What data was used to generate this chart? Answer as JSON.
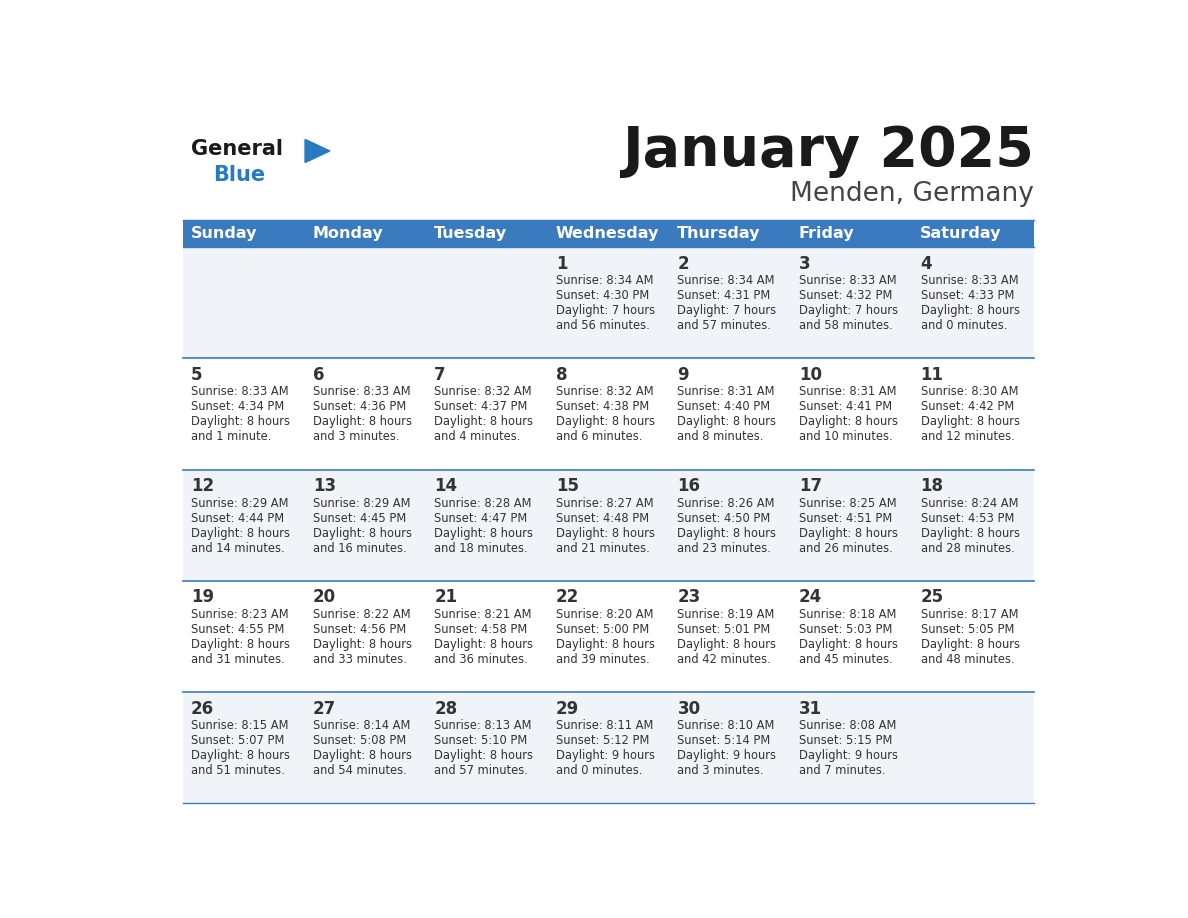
{
  "title": "January 2025",
  "subtitle": "Menden, Germany",
  "days_of_week": [
    "Sunday",
    "Monday",
    "Tuesday",
    "Wednesday",
    "Thursday",
    "Friday",
    "Saturday"
  ],
  "header_bg": "#3a7abf",
  "header_text": "#ffffff",
  "row_bg_light": "#f0f4f8",
  "row_bg_white": "#ffffff",
  "divider_color": "#3a7abf",
  "text_color": "#333333",
  "title_color": "#1a1a1a",
  "subtitle_color": "#444444",
  "logo_general_color": "#1a1a1a",
  "logo_blue_color": "#2a7abf",
  "calendar": [
    [
      null,
      null,
      null,
      {
        "day": "1",
        "sunrise": "8:34 AM",
        "sunset": "4:30 PM",
        "daylight_h": "7 hours",
        "daylight_m": "and 56 minutes."
      },
      {
        "day": "2",
        "sunrise": "8:34 AM",
        "sunset": "4:31 PM",
        "daylight_h": "7 hours",
        "daylight_m": "and 57 minutes."
      },
      {
        "day": "3",
        "sunrise": "8:33 AM",
        "sunset": "4:32 PM",
        "daylight_h": "7 hours",
        "daylight_m": "and 58 minutes."
      },
      {
        "day": "4",
        "sunrise": "8:33 AM",
        "sunset": "4:33 PM",
        "daylight_h": "8 hours",
        "daylight_m": "and 0 minutes."
      }
    ],
    [
      {
        "day": "5",
        "sunrise": "8:33 AM",
        "sunset": "4:34 PM",
        "daylight_h": "8 hours",
        "daylight_m": "and 1 minute."
      },
      {
        "day": "6",
        "sunrise": "8:33 AM",
        "sunset": "4:36 PM",
        "daylight_h": "8 hours",
        "daylight_m": "and 3 minutes."
      },
      {
        "day": "7",
        "sunrise": "8:32 AM",
        "sunset": "4:37 PM",
        "daylight_h": "8 hours",
        "daylight_m": "and 4 minutes."
      },
      {
        "day": "8",
        "sunrise": "8:32 AM",
        "sunset": "4:38 PM",
        "daylight_h": "8 hours",
        "daylight_m": "and 6 minutes."
      },
      {
        "day": "9",
        "sunrise": "8:31 AM",
        "sunset": "4:40 PM",
        "daylight_h": "8 hours",
        "daylight_m": "and 8 minutes."
      },
      {
        "day": "10",
        "sunrise": "8:31 AM",
        "sunset": "4:41 PM",
        "daylight_h": "8 hours",
        "daylight_m": "and 10 minutes."
      },
      {
        "day": "11",
        "sunrise": "8:30 AM",
        "sunset": "4:42 PM",
        "daylight_h": "8 hours",
        "daylight_m": "and 12 minutes."
      }
    ],
    [
      {
        "day": "12",
        "sunrise": "8:29 AM",
        "sunset": "4:44 PM",
        "daylight_h": "8 hours",
        "daylight_m": "and 14 minutes."
      },
      {
        "day": "13",
        "sunrise": "8:29 AM",
        "sunset": "4:45 PM",
        "daylight_h": "8 hours",
        "daylight_m": "and 16 minutes."
      },
      {
        "day": "14",
        "sunrise": "8:28 AM",
        "sunset": "4:47 PM",
        "daylight_h": "8 hours",
        "daylight_m": "and 18 minutes."
      },
      {
        "day": "15",
        "sunrise": "8:27 AM",
        "sunset": "4:48 PM",
        "daylight_h": "8 hours",
        "daylight_m": "and 21 minutes."
      },
      {
        "day": "16",
        "sunrise": "8:26 AM",
        "sunset": "4:50 PM",
        "daylight_h": "8 hours",
        "daylight_m": "and 23 minutes."
      },
      {
        "day": "17",
        "sunrise": "8:25 AM",
        "sunset": "4:51 PM",
        "daylight_h": "8 hours",
        "daylight_m": "and 26 minutes."
      },
      {
        "day": "18",
        "sunrise": "8:24 AM",
        "sunset": "4:53 PM",
        "daylight_h": "8 hours",
        "daylight_m": "and 28 minutes."
      }
    ],
    [
      {
        "day": "19",
        "sunrise": "8:23 AM",
        "sunset": "4:55 PM",
        "daylight_h": "8 hours",
        "daylight_m": "and 31 minutes."
      },
      {
        "day": "20",
        "sunrise": "8:22 AM",
        "sunset": "4:56 PM",
        "daylight_h": "8 hours",
        "daylight_m": "and 33 minutes."
      },
      {
        "day": "21",
        "sunrise": "8:21 AM",
        "sunset": "4:58 PM",
        "daylight_h": "8 hours",
        "daylight_m": "and 36 minutes."
      },
      {
        "day": "22",
        "sunrise": "8:20 AM",
        "sunset": "5:00 PM",
        "daylight_h": "8 hours",
        "daylight_m": "and 39 minutes."
      },
      {
        "day": "23",
        "sunrise": "8:19 AM",
        "sunset": "5:01 PM",
        "daylight_h": "8 hours",
        "daylight_m": "and 42 minutes."
      },
      {
        "day": "24",
        "sunrise": "8:18 AM",
        "sunset": "5:03 PM",
        "daylight_h": "8 hours",
        "daylight_m": "and 45 minutes."
      },
      {
        "day": "25",
        "sunrise": "8:17 AM",
        "sunset": "5:05 PM",
        "daylight_h": "8 hours",
        "daylight_m": "and 48 minutes."
      }
    ],
    [
      {
        "day": "26",
        "sunrise": "8:15 AM",
        "sunset": "5:07 PM",
        "daylight_h": "8 hours",
        "daylight_m": "and 51 minutes."
      },
      {
        "day": "27",
        "sunrise": "8:14 AM",
        "sunset": "5:08 PM",
        "daylight_h": "8 hours",
        "daylight_m": "and 54 minutes."
      },
      {
        "day": "28",
        "sunrise": "8:13 AM",
        "sunset": "5:10 PM",
        "daylight_h": "8 hours",
        "daylight_m": "and 57 minutes."
      },
      {
        "day": "29",
        "sunrise": "8:11 AM",
        "sunset": "5:12 PM",
        "daylight_h": "9 hours",
        "daylight_m": "and 0 minutes."
      },
      {
        "day": "30",
        "sunrise": "8:10 AM",
        "sunset": "5:14 PM",
        "daylight_h": "9 hours",
        "daylight_m": "and 3 minutes."
      },
      {
        "day": "31",
        "sunrise": "8:08 AM",
        "sunset": "5:15 PM",
        "daylight_h": "9 hours",
        "daylight_m": "and 7 minutes."
      },
      null
    ]
  ]
}
